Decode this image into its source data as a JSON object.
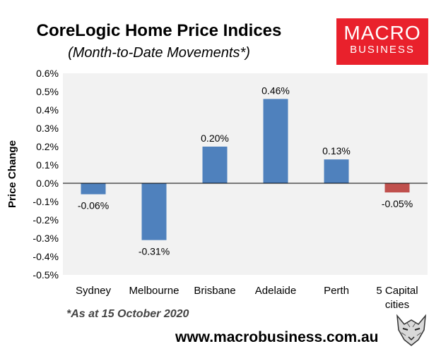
{
  "header": {
    "title": "CoreLogic Home Price Indices",
    "subtitle": "(Month-to-Date Movements*)"
  },
  "logo": {
    "line1": "MACRO",
    "line2": "BUSINESS",
    "bg_color": "#e9212c"
  },
  "footer": {
    "note": "*As at 15 October 2020",
    "url": "www.macrobusiness.com.au"
  },
  "chart_data": {
    "type": "bar",
    "categories": [
      "Sydney",
      "Melbourne",
      "Brisbane",
      "Adelaide",
      "Perth",
      "5 Capital cities"
    ],
    "values": [
      -0.06,
      -0.31,
      0.2,
      0.46,
      0.13,
      -0.05
    ],
    "data_labels": [
      "-0.06%",
      "-0.31%",
      "0.20%",
      "0.46%",
      "0.13%",
      "-0.05%"
    ],
    "colors": [
      "#4f81bd",
      "#4f81bd",
      "#4f81bd",
      "#4f81bd",
      "#4f81bd",
      "#c0504d"
    ],
    "ylabel": "Price Change",
    "ylim": [
      -0.5,
      0.6
    ],
    "yticks": [
      0.6,
      0.5,
      0.4,
      0.3,
      0.2,
      0.1,
      0.0,
      -0.1,
      -0.2,
      -0.3,
      -0.4,
      -0.5
    ],
    "ytick_labels": [
      "0.6%",
      "0.5%",
      "0.4%",
      "0.3%",
      "0.2%",
      "0.1%",
      "0.0%",
      "-0.1%",
      "-0.2%",
      "-0.3%",
      "-0.4%",
      "-0.5%"
    ],
    "plot_background": "#f2f2f2",
    "grid": false,
    "legend": "none"
  }
}
